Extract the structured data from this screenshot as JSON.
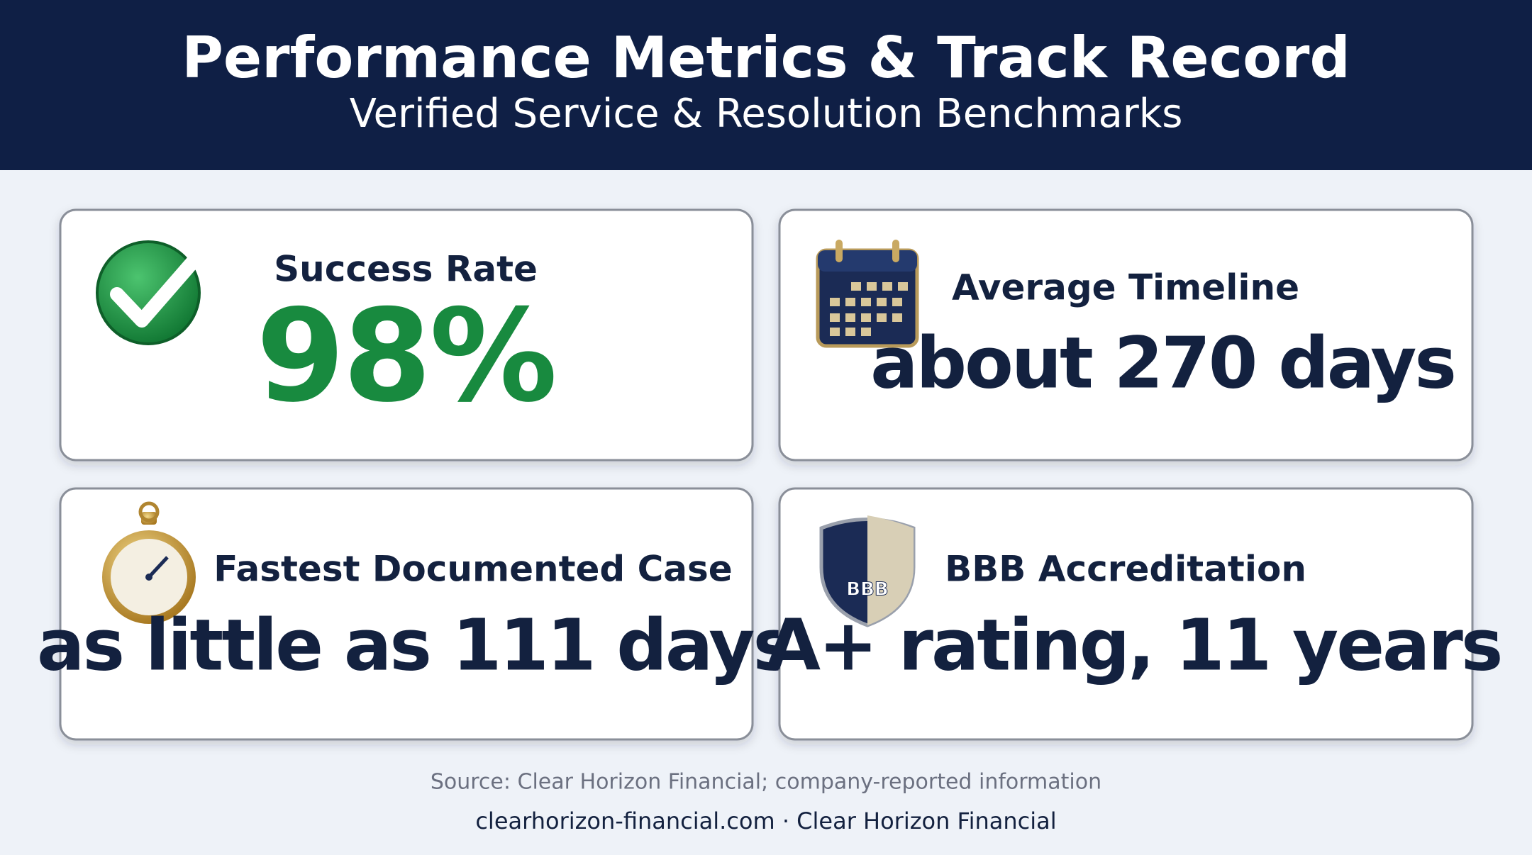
{
  "header": {
    "title": "Performance Metrics & Track Record",
    "subtitle": "Verified Service & Resolution Benchmarks"
  },
  "metrics": [
    {
      "label": "Success Rate",
      "value": "98%"
    },
    {
      "label": "Average Timeline",
      "value": "about 270 days"
    },
    {
      "label": "Fastest Documented Case",
      "value": "as little as 111 days"
    },
    {
      "label": "BBB Accreditation",
      "value": "A+ rating, 11 years",
      "icon_text": "BBB"
    }
  ],
  "footer": {
    "source": "Source: Clear Horizon Financial; company-reported information",
    "site": "clearhorizon-financial.com · Clear Horizon Financial"
  }
}
